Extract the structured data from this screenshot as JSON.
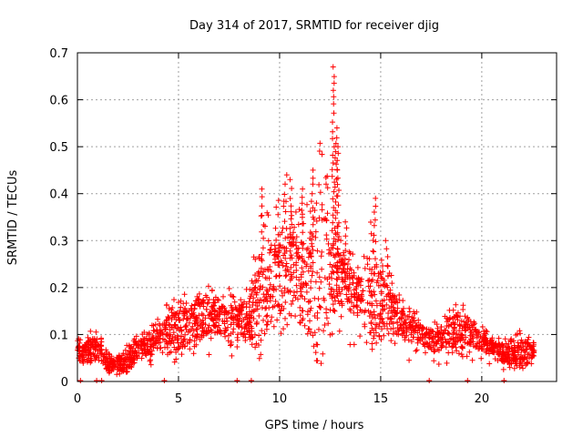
{
  "chart_data": {
    "type": "scatter",
    "title": "Day 314 of 2017, SRMTID for receiver djig",
    "xlabel": "GPS time / hours",
    "ylabel": "SRMTID / TECUs",
    "xlim": [
      0,
      23.7
    ],
    "ylim": [
      0,
      0.7
    ],
    "x_ticks": [
      0,
      5,
      10,
      15,
      20
    ],
    "y_ticks": [
      0,
      0.1,
      0.2,
      0.3,
      0.4,
      0.5,
      0.6,
      0.7
    ],
    "x_tick_labels": [
      "0",
      "5",
      "10",
      "15",
      "20"
    ],
    "y_tick_labels": [
      "0",
      "0.1",
      "0.2",
      "0.3",
      "0.4",
      "0.5",
      "0.6",
      "0.7"
    ],
    "grid": true,
    "marker": "plus",
    "color": "#ff0000",
    "series": [
      {
        "name": "SRMTID",
        "envelope_x": [
          0,
          0.5,
          1,
          1.5,
          2,
          2.5,
          3,
          3.5,
          4,
          4.5,
          5,
          5.5,
          6,
          6.5,
          7,
          7.5,
          8,
          8.5,
          9,
          9.5,
          10,
          10.5,
          11,
          11.5,
          12,
          12.5,
          13,
          13.5,
          14,
          14.5,
          15,
          15.5,
          16,
          16.5,
          17,
          17.5,
          18,
          18.5,
          19,
          19.5,
          20,
          20.5,
          21,
          21.5,
          22,
          22.6
        ],
        "envelope_median": [
          0.06,
          0.065,
          0.07,
          0.035,
          0.035,
          0.04,
          0.07,
          0.075,
          0.09,
          0.1,
          0.105,
          0.12,
          0.13,
          0.14,
          0.13,
          0.12,
          0.115,
          0.13,
          0.16,
          0.2,
          0.22,
          0.23,
          0.21,
          0.2,
          0.22,
          0.23,
          0.22,
          0.19,
          0.18,
          0.17,
          0.16,
          0.15,
          0.12,
          0.11,
          0.1,
          0.085,
          0.09,
          0.1,
          0.11,
          0.1,
          0.085,
          0.075,
          0.06,
          0.055,
          0.06,
          0.06
        ],
        "envelope_max": [
          0.11,
          0.12,
          0.12,
          0.07,
          0.06,
          0.09,
          0.11,
          0.12,
          0.15,
          0.19,
          0.2,
          0.21,
          0.23,
          0.22,
          0.19,
          0.22,
          0.21,
          0.22,
          0.41,
          0.4,
          0.44,
          0.43,
          0.41,
          0.45,
          0.67,
          0.42,
          0.34,
          0.3,
          0.27,
          0.39,
          0.33,
          0.25,
          0.19,
          0.17,
          0.15,
          0.14,
          0.15,
          0.19,
          0.2,
          0.15,
          0.13,
          0.1,
          0.1,
          0.1,
          0.13,
          0.09
        ],
        "zero_points_x": [
          0.15,
          0.95,
          1.2,
          4.3,
          7.9,
          8.6,
          17.4,
          19.3,
          21.1
        ],
        "values_note": "dense point cloud reconstructed from envelope"
      }
    ]
  }
}
